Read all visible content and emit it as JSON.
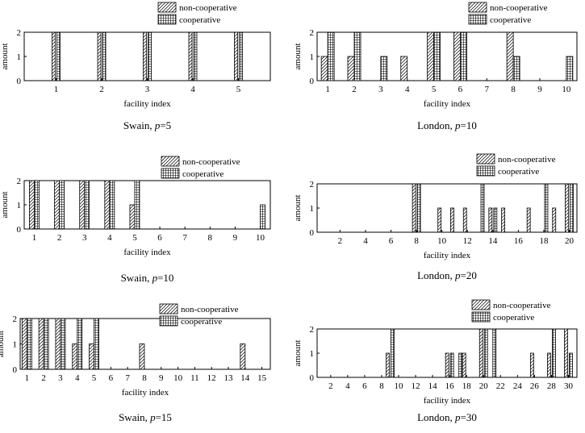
{
  "legend": {
    "non_cooperative": "non-cooperative",
    "cooperative": "cooperative"
  },
  "colors": {
    "ink": "#000000",
    "background": "#ffffff"
  },
  "chart_data": [
    {
      "type": "bar",
      "caption_prefix": "Swain, ",
      "caption_var": "p",
      "caption_value": "=5",
      "xlabel": "facility index",
      "ylabel": "amount",
      "ylim": [
        0,
        2
      ],
      "yticks": [
        0,
        1,
        2
      ],
      "xlim": [
        0.3,
        5.7
      ],
      "xticks": [
        1,
        2,
        3,
        4,
        5
      ],
      "legend_position": "top-right",
      "series": [
        {
          "name": "non-cooperative",
          "pattern": "hatch",
          "x": [
            1,
            2,
            3,
            4,
            5
          ],
          "values": [
            2,
            2,
            2,
            2,
            2
          ]
        },
        {
          "name": "cooperative",
          "pattern": "grid",
          "x": [
            1,
            2,
            3,
            4,
            5
          ],
          "values": [
            2,
            2,
            2,
            2,
            2
          ]
        }
      ]
    },
    {
      "type": "bar",
      "caption_prefix": "London, ",
      "caption_var": "p",
      "caption_value": "=10",
      "xlabel": "facility index",
      "ylabel": "amount",
      "ylim": [
        0,
        2
      ],
      "yticks": [
        0,
        1,
        2
      ],
      "xlim": [
        0.6,
        10.4
      ],
      "xticks": [
        1,
        2,
        3,
        4,
        5,
        6,
        7,
        8,
        9,
        10
      ],
      "legend_position": "top-right",
      "series": [
        {
          "name": "non-cooperative",
          "pattern": "hatch",
          "x": [
            1,
            2,
            4,
            5,
            6,
            8
          ],
          "values": [
            1,
            1,
            1,
            2,
            2,
            2
          ]
        },
        {
          "name": "cooperative",
          "pattern": "grid",
          "x": [
            1,
            2,
            3,
            5,
            6,
            8,
            10
          ],
          "values": [
            2,
            2,
            1,
            2,
            2,
            1,
            1
          ]
        }
      ]
    },
    {
      "type": "bar",
      "caption_prefix": "Swain, ",
      "caption_var": "p",
      "caption_value": "=10",
      "xlabel": "facility index",
      "ylabel": "amount",
      "ylim": [
        0,
        2
      ],
      "yticks": [
        0,
        1,
        2
      ],
      "xlim": [
        0.6,
        10.4
      ],
      "xticks": [
        1,
        2,
        3,
        4,
        5,
        6,
        7,
        8,
        9,
        10
      ],
      "legend_position": "top-right",
      "series": [
        {
          "name": "non-cooperative",
          "pattern": "hatch",
          "x": [
            1,
            2,
            3,
            4,
            5
          ],
          "values": [
            2,
            2,
            2,
            2,
            1
          ]
        },
        {
          "name": "cooperative",
          "pattern": "grid",
          "x": [
            1,
            2,
            3,
            4,
            5,
            10
          ],
          "values": [
            2,
            2,
            2,
            2,
            2,
            1
          ]
        }
      ]
    },
    {
      "type": "bar",
      "caption_prefix": "London, ",
      "caption_var": "p",
      "caption_value": "=20",
      "xlabel": "facility index",
      "ylabel": "amount",
      "ylim": [
        0,
        2
      ],
      "yticks": [
        0,
        1,
        2
      ],
      "xlim": [
        0.2,
        20.6
      ],
      "xticks": [
        2,
        4,
        6,
        8,
        10,
        12,
        14,
        16,
        18,
        20
      ],
      "legend_position": "top-right",
      "series": [
        {
          "name": "non-cooperative",
          "pattern": "hatch",
          "x": [
            8,
            10,
            11,
            12,
            14,
            15,
            17,
            19,
            20
          ],
          "values": [
            2,
            1,
            1,
            1,
            1,
            1,
            1,
            1,
            2
          ]
        },
        {
          "name": "cooperative",
          "pattern": "grid",
          "x": [
            8,
            13,
            14,
            18,
            20
          ],
          "values": [
            2,
            2,
            1,
            2,
            2
          ]
        }
      ]
    },
    {
      "type": "bar",
      "caption_prefix": "Swain, ",
      "caption_var": "p",
      "caption_value": "=15",
      "xlabel": "facility index",
      "ylabel": "amount",
      "ylim": [
        0,
        2
      ],
      "yticks": [
        0,
        1,
        2
      ],
      "xlim": [
        0.6,
        15.5
      ],
      "xticks": [
        1,
        2,
        3,
        4,
        5,
        6,
        7,
        8,
        9,
        10,
        11,
        12,
        13,
        14,
        15
      ],
      "legend_position": "top-right",
      "series": [
        {
          "name": "non-cooperative",
          "pattern": "hatch",
          "x": [
            1,
            2,
            3,
            4,
            5,
            8,
            14
          ],
          "values": [
            2,
            2,
            2,
            1,
            1,
            1,
            1
          ]
        },
        {
          "name": "cooperative",
          "pattern": "grid",
          "x": [
            1,
            2,
            3,
            4,
            5
          ],
          "values": [
            2,
            2,
            2,
            2,
            2
          ]
        }
      ]
    },
    {
      "type": "bar",
      "caption_prefix": "London, ",
      "caption_var": "p",
      "caption_value": "=30",
      "xlabel": "facility index",
      "ylabel": "amount",
      "ylim": [
        0,
        2
      ],
      "yticks": [
        0,
        1,
        2
      ],
      "xlim": [
        0.4,
        31.0
      ],
      "xticks": [
        2,
        4,
        6,
        8,
        10,
        12,
        14,
        16,
        18,
        20,
        22,
        24,
        26,
        28,
        30
      ],
      "legend_position": "top-right",
      "series": [
        {
          "name": "non-cooperative",
          "pattern": "hatch",
          "x": [
            9,
            16,
            18,
            20,
            26,
            28,
            30
          ],
          "values": [
            1,
            1,
            1,
            2,
            1,
            1,
            2
          ]
        },
        {
          "name": "cooperative",
          "pattern": "grid",
          "x": [
            9,
            16,
            17,
            20,
            21,
            28,
            30
          ],
          "values": [
            2,
            1,
            1,
            2,
            2,
            2,
            1
          ]
        }
      ]
    }
  ]
}
